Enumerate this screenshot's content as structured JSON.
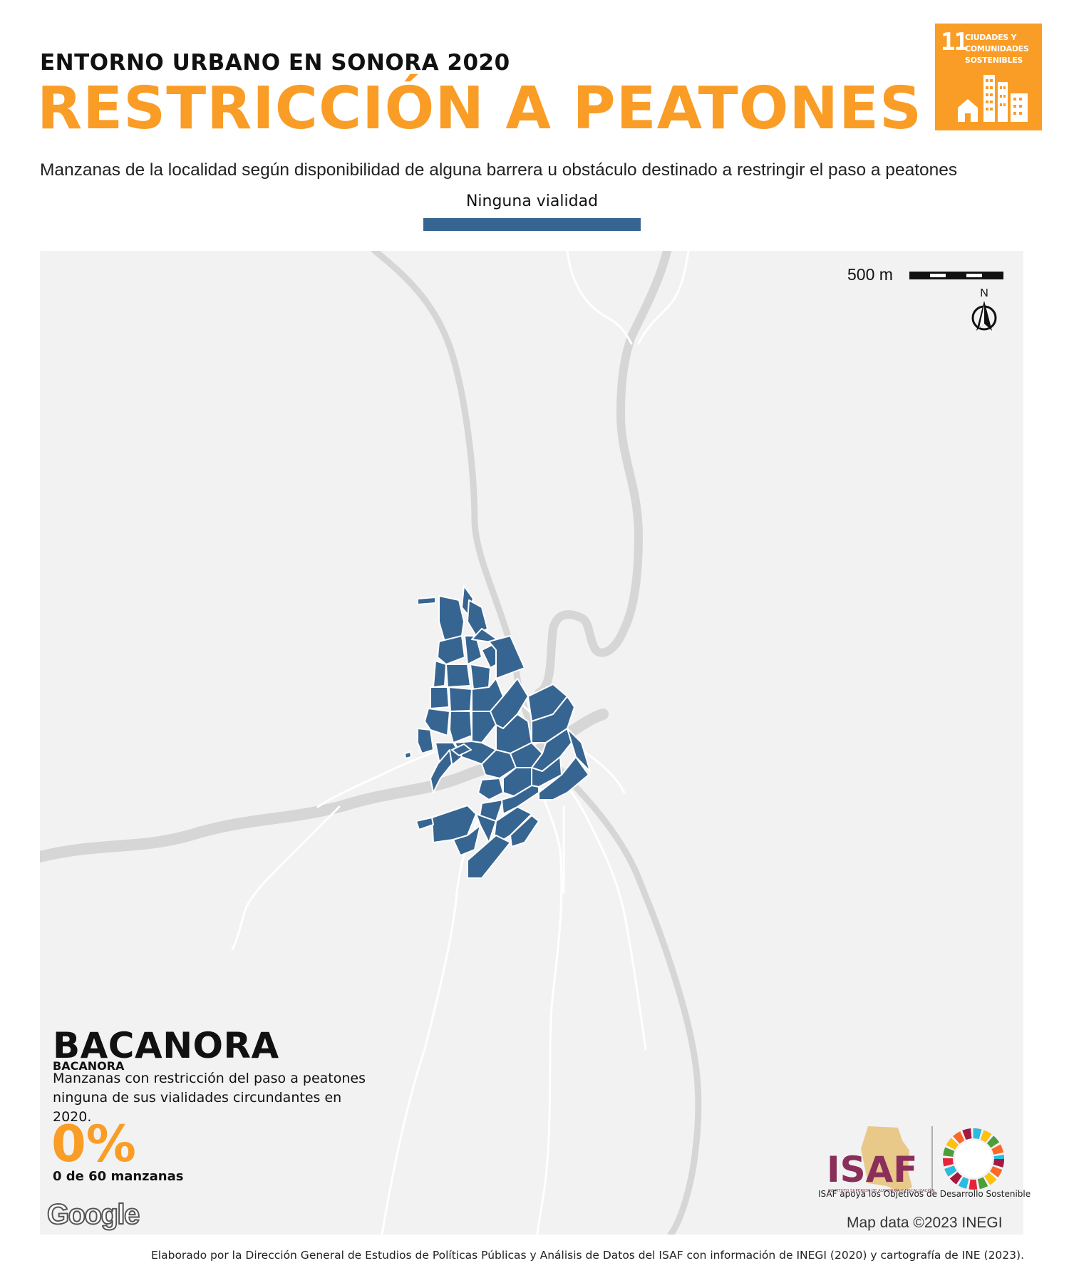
{
  "header": {
    "supertitle": "ENTORNO URBANO EN SONORA 2020",
    "title": "RESTRICCIÓN A PEATONES",
    "subtitle": "Manzanas de la localidad según disponibilidad de alguna barrera u obstáculo destinado a restringir el paso a peatones"
  },
  "legend": {
    "label": "Ninguna vialidad",
    "color": "#376591"
  },
  "sdg_badge": {
    "number": "11",
    "text": "CIUDADES Y COMUNIDADES SOSTENIBLES",
    "color": "#FA9D26"
  },
  "map": {
    "scale_label": "500 m",
    "north_label": "N",
    "background": "#F2F2F2",
    "road_color": "#D6D6D6",
    "street_color": "#FFFFFF",
    "block_color": "#376591"
  },
  "locality": {
    "name": "BACANORA",
    "name_small": "BACANORA",
    "description": "Manzanas con restricción del paso a peatones ninguna de sus vialidades circundantes en 2020.",
    "percent": "0%",
    "count": "0 de 60 manzanas",
    "percent_value": 0,
    "blocks_with_restriction": 0,
    "blocks_total": 60
  },
  "attribution": {
    "google": "Google",
    "map_data": "Map data ©2023 INEGI"
  },
  "isaf": {
    "logo_text": "ISAF",
    "logo_subtext": "INSTITUTO SUPERIOR DE AUDITORÍA Y FISCALIZACIÓN",
    "caption": "ISAF apoya los Objetivos de Desarrollo Sostenible"
  },
  "footer": "Elaborado por la Dirección General de Estudios de Políticas Públicas y Análisis de Datos del ISAF con información de INEGI (2020) y cartografía de INE (2023)."
}
